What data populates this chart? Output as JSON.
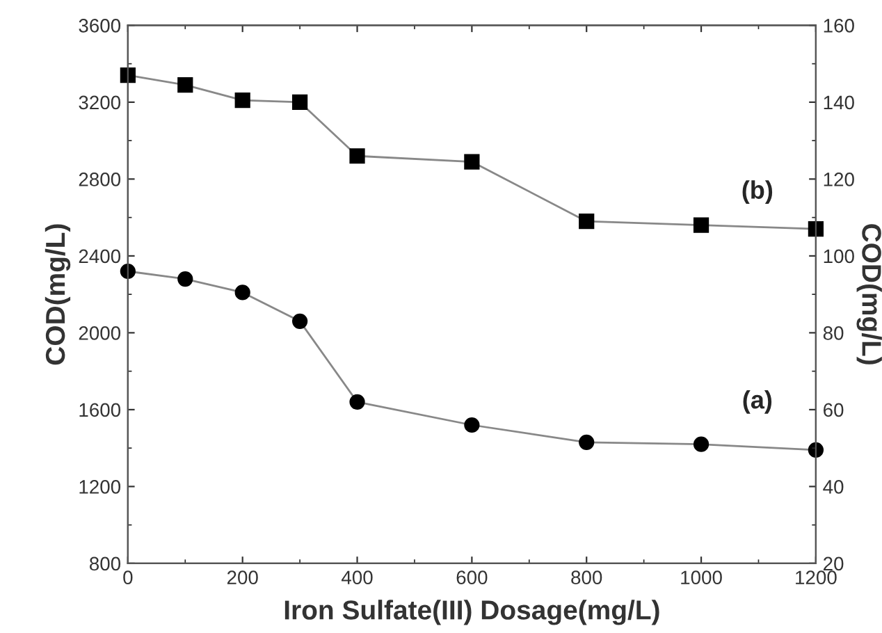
{
  "chart_data": {
    "type": "line",
    "xlabel": "Iron Sulfate(III) Dosage(mg/L)",
    "ylabel": "COD(mg/L)",
    "y2label": "COD(mg/L)",
    "x": [
      0,
      100,
      200,
      300,
      400,
      600,
      800,
      1000,
      1200
    ],
    "series": [
      {
        "color": "#000000",
        "marker": "square",
        "values": [
          3340,
          3290,
          3210,
          3200,
          2920,
          2890,
          2580,
          2560,
          2540
        ]
      },
      {
        "color": "#000000",
        "marker": "circle",
        "values": [
          2320,
          2280,
          2210,
          2060,
          1640,
          1520,
          1430,
          1420,
          1390
        ]
      }
    ],
    "annotations": [
      "(b)",
      "(a)"
    ],
    "xlim": [
      0,
      1200
    ],
    "xticks": [
      0,
      200,
      400,
      600,
      800,
      1000,
      1200
    ],
    "ylim": [
      800,
      3600
    ],
    "yticks": [
      800,
      1200,
      1600,
      2000,
      2400,
      2800,
      3200,
      3600
    ],
    "y2lim": [
      20,
      160
    ],
    "y2ticks": [
      20,
      40,
      60,
      80,
      100,
      120,
      140,
      160
    ],
    "line_style": "solid",
    "grid": false,
    "legend": false
  }
}
